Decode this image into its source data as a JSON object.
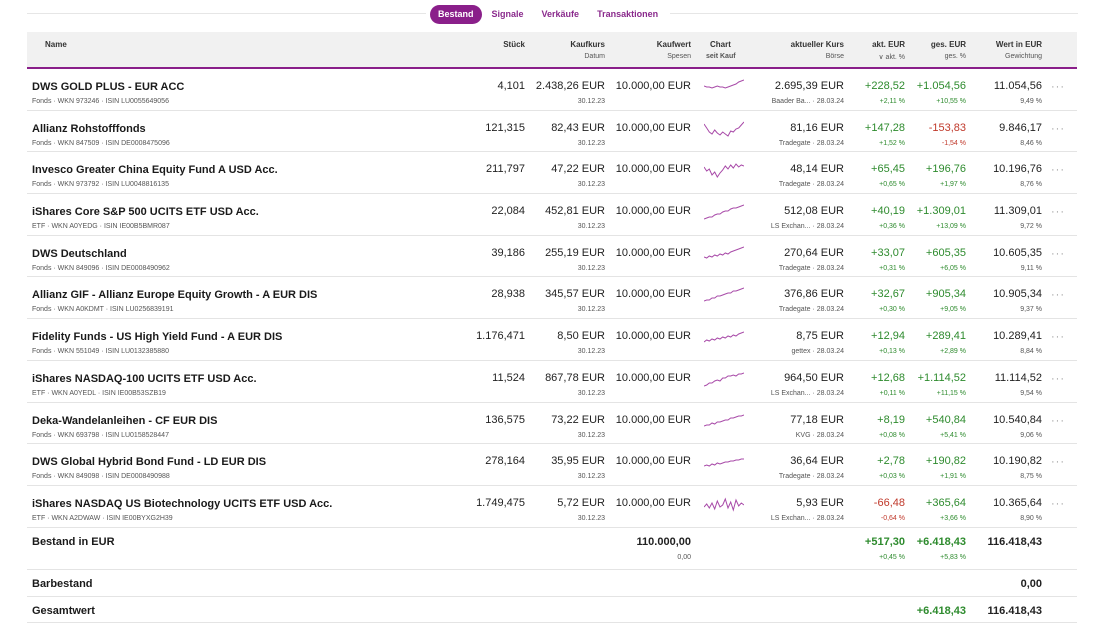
{
  "tabs": [
    "Bestand",
    "Signale",
    "Verkäufe",
    "Transaktionen"
  ],
  "header": {
    "name": "Name",
    "stueck": "Stück",
    "kaufkurs": "Kaufkurs",
    "kaufkurs_sub": "Datum",
    "kaufwert": "Kaufwert",
    "kaufwert_sub": "Spesen",
    "chart": "Chart",
    "chart_sub": "seit Kauf",
    "kurs": "aktueller Kurs",
    "kurs_sub": "Börse",
    "akt": "akt. EUR",
    "akt_sub": "akt. %",
    "akt_icon": "chevron-down-icon",
    "ges": "ges. EUR",
    "ges_sub": "ges. %",
    "wert": "Wert in EUR",
    "wert_sub": "Gewichtung"
  },
  "rows": [
    {
      "name": "DWS GOLD PLUS - EUR ACC",
      "meta": "Fonds · WKN 973246 · ISIN LU0055649056",
      "stueck": "4,101",
      "kaufkurs": "2.438,26 EUR",
      "datum": "30.12.23",
      "kaufwert": "10.000,00 EUR",
      "kurs": "2.695,39 EUR",
      "boerse": "Baader Ba... · 28.03.24",
      "akt": "+228,52",
      "akt_pct": "+2,11 %",
      "ges": "+1.054,56",
      "ges_pct": "+10,55 %",
      "wert": "11.054,56",
      "gew": "9,49 %",
      "akt_color": "pos",
      "ges_color": "pos",
      "spark": [
        8,
        9,
        9,
        10,
        9,
        8,
        9,
        9,
        10,
        9,
        8,
        7,
        6,
        4,
        3,
        2
      ]
    },
    {
      "name": "Allianz Rohstofffonds",
      "meta": "Fonds · WKN 847509 · ISIN DE0008475096",
      "stueck": "121,315",
      "kaufkurs": "82,43 EUR",
      "datum": "30.12.23",
      "kaufwert": "10.000,00 EUR",
      "kurs": "81,16 EUR",
      "boerse": "Tradegate · 28.03.24",
      "akt": "+147,28",
      "akt_pct": "+1,52 %",
      "ges": "-153,83",
      "ges_pct": "-1,54 %",
      "wert": "9.846,17",
      "gew": "8,46 %",
      "akt_color": "pos",
      "ges_color": "neg",
      "spark": [
        4,
        8,
        12,
        14,
        10,
        13,
        15,
        12,
        14,
        16,
        11,
        12,
        9,
        8,
        5,
        2
      ]
    },
    {
      "name": "Invesco Greater China Equity Fund A USD Acc.",
      "meta": "Fonds · WKN 973792 · ISIN LU0048816135",
      "stueck": "211,797",
      "kaufkurs": "47,22 EUR",
      "datum": "30.12.23",
      "kaufwert": "10.000,00 EUR",
      "kurs": "48,14 EUR",
      "boerse": "Tradegate · 28.03.24",
      "akt": "+65,45",
      "akt_pct": "+0,65 %",
      "ges": "+196,76",
      "ges_pct": "+1,97 %",
      "wert": "10.196,76",
      "gew": "8,76 %",
      "akt_color": "pos",
      "ges_color": "pos",
      "spark": [
        6,
        10,
        8,
        14,
        11,
        16,
        12,
        9,
        5,
        8,
        4,
        7,
        3,
        6,
        4,
        5
      ]
    },
    {
      "name": "iShares Core S&P 500 UCITS ETF USD Acc.",
      "meta": "ETF · WKN A0YEDG · ISIN IE00B5BMR087",
      "stueck": "22,084",
      "kaufkurs": "452,81 EUR",
      "datum": "30.12.23",
      "kaufwert": "10.000,00 EUR",
      "kurs": "512,08 EUR",
      "boerse": "LS Exchan... · 28.03.24",
      "akt": "+40,19",
      "akt_pct": "+0,36 %",
      "ges": "+1.309,01",
      "ges_pct": "+13,09 %",
      "wert": "11.309,01",
      "gew": "9,72 %",
      "akt_color": "pos",
      "ges_color": "pos",
      "spark": [
        16,
        15,
        14,
        14,
        12,
        11,
        11,
        9,
        8,
        8,
        6,
        5,
        5,
        4,
        3,
        2
      ]
    },
    {
      "name": "DWS Deutschland",
      "meta": "Fonds · WKN 849096 · ISIN DE0008490962",
      "stueck": "39,186",
      "kaufkurs": "255,19 EUR",
      "datum": "30.12.23",
      "kaufwert": "10.000,00 EUR",
      "kurs": "270,64 EUR",
      "boerse": "Tradegate · 28.03.24",
      "akt": "+33,07",
      "akt_pct": "+0,31 %",
      "ges": "+605,35",
      "ges_pct": "+6,05 %",
      "wert": "10.605,35",
      "gew": "9,11 %",
      "akt_color": "pos",
      "ges_color": "pos",
      "spark": [
        12,
        13,
        11,
        12,
        10,
        11,
        9,
        10,
        8,
        9,
        7,
        6,
        5,
        4,
        3,
        2
      ]
    },
    {
      "name": "Allianz GIF - Allianz Europe Equity Growth - A EUR DIS",
      "meta": "Fonds · WKN A0KDMT · ISIN LU0256839191",
      "stueck": "28,938",
      "kaufkurs": "345,57 EUR",
      "datum": "30.12.23",
      "kaufwert": "10.000,00 EUR",
      "kurs": "376,86 EUR",
      "boerse": "Tradegate · 28.03.24",
      "akt": "+32,67",
      "akt_pct": "+0,30 %",
      "ges": "+905,34",
      "ges_pct": "+9,05 %",
      "wert": "10.905,34",
      "gew": "9,37 %",
      "akt_color": "pos",
      "ges_color": "pos",
      "spark": [
        15,
        14,
        14,
        12,
        12,
        10,
        10,
        9,
        8,
        7,
        7,
        5,
        5,
        4,
        3,
        2
      ]
    },
    {
      "name": "Fidelity Funds - US High Yield Fund - A EUR DIS",
      "meta": "Fonds · WKN 551049 · ISIN LU0132385880",
      "stueck": "1.176,471",
      "kaufkurs": "8,50 EUR",
      "datum": "30.12.23",
      "kaufwert": "10.000,00 EUR",
      "kurs": "8,75 EUR",
      "boerse": "gettex · 28.03.24",
      "akt": "+12,94",
      "akt_pct": "+0,13 %",
      "ges": "+289,41",
      "ges_pct": "+2,89 %",
      "wert": "10.289,41",
      "gew": "8,84 %",
      "akt_color": "pos",
      "ges_color": "pos",
      "spark": [
        14,
        12,
        13,
        11,
        12,
        10,
        11,
        9,
        10,
        8,
        9,
        7,
        8,
        6,
        5,
        4
      ]
    },
    {
      "name": "iShares NASDAQ-100 UCITS ETF USD Acc.",
      "meta": "ETF · WKN A0YEDL · ISIN IE00B53SZB19",
      "stueck": "11,524",
      "kaufkurs": "867,78 EUR",
      "datum": "30.12.23",
      "kaufwert": "10.000,00 EUR",
      "kurs": "964,50 EUR",
      "boerse": "LS Exchan... · 28.03.24",
      "akt": "+12,68",
      "akt_pct": "+0,11 %",
      "ges": "+1.114,52",
      "ges_pct": "+11,15 %",
      "wert": "11.114,52",
      "gew": "9,54 %",
      "akt_color": "pos",
      "ges_color": "pos",
      "spark": [
        16,
        15,
        13,
        13,
        11,
        10,
        11,
        8,
        8,
        6,
        6,
        5,
        6,
        4,
        4,
        3
      ]
    },
    {
      "name": "Deka-Wandelanleihen - CF EUR DIS",
      "meta": "Fonds · WKN 693798 · ISIN LU0158528447",
      "stueck": "136,575",
      "kaufkurs": "73,22 EUR",
      "datum": "30.12.23",
      "kaufwert": "10.000,00 EUR",
      "kurs": "77,18 EUR",
      "boerse": "KVG · 28.03.24",
      "akt": "+8,19",
      "akt_pct": "+0,08 %",
      "ges": "+540,84",
      "ges_pct": "+5,41 %",
      "wert": "10.540,84",
      "gew": "9,06 %",
      "akt_color": "pos",
      "ges_color": "pos",
      "spark": [
        14,
        13,
        13,
        11,
        12,
        10,
        10,
        9,
        8,
        8,
        6,
        6,
        5,
        4,
        4,
        3
      ]
    },
    {
      "name": "DWS Global Hybrid Bond Fund - LD EUR DIS",
      "meta": "Fonds · WKN 849098 · ISIN DE0008490988",
      "stueck": "278,164",
      "kaufkurs": "35,95 EUR",
      "datum": "30.12.23",
      "kaufwert": "10.000,00 EUR",
      "kurs": "36,64 EUR",
      "boerse": "Tradegate · 28.03.24",
      "akt": "+2,78",
      "akt_pct": "+0,03 %",
      "ges": "+190,82",
      "ges_pct": "+1,91 %",
      "wert": "10.190,82",
      "gew": "8,75 %",
      "akt_color": "pos",
      "ges_color": "pos",
      "spark": [
        13,
        12,
        13,
        11,
        12,
        10,
        11,
        10,
        9,
        9,
        8,
        8,
        7,
        7,
        6,
        6
      ]
    },
    {
      "name": "iShares NASDAQ US Biotechnology UCITS ETF USD Acc.",
      "meta": "ETF · WKN A2DWAW · ISIN IE00BYXG2H39",
      "stueck": "1.749,475",
      "kaufkurs": "5,72 EUR",
      "datum": "30.12.23",
      "kaufwert": "10.000,00 EUR",
      "kurs": "5,93 EUR",
      "boerse": "LS Exchan... · 28.03.24",
      "akt": "-66,48",
      "akt_pct": "-0,64 %",
      "ges": "+365,64",
      "ges_pct": "+3,66 %",
      "wert": "10.365,64",
      "gew": "8,90 %",
      "akt_color": "neg",
      "ges_color": "pos",
      "spark": [
        12,
        9,
        13,
        8,
        14,
        6,
        12,
        10,
        4,
        13,
        7,
        15,
        5,
        11,
        8,
        10
      ]
    }
  ],
  "bestand": {
    "label": "Bestand in EUR",
    "kaufwert": "110.000,00",
    "spesen": "0,00",
    "akt": "+517,30",
    "akt_pct": "+0,45 %",
    "ges": "+6.418,43",
    "ges_pct": "+5,83 %",
    "wert": "116.418,43"
  },
  "barbestand": {
    "label": "Barbestand",
    "wert": "0,00"
  },
  "gesamtwert": {
    "label": "Gesamtwert",
    "ges": "+6.418,43",
    "wert": "116.418,43"
  },
  "colors": {
    "accent": "#8a1f8a",
    "positive": "#2e8b2e",
    "negative": "#c0392b",
    "sparkline": "#a84aa8"
  }
}
